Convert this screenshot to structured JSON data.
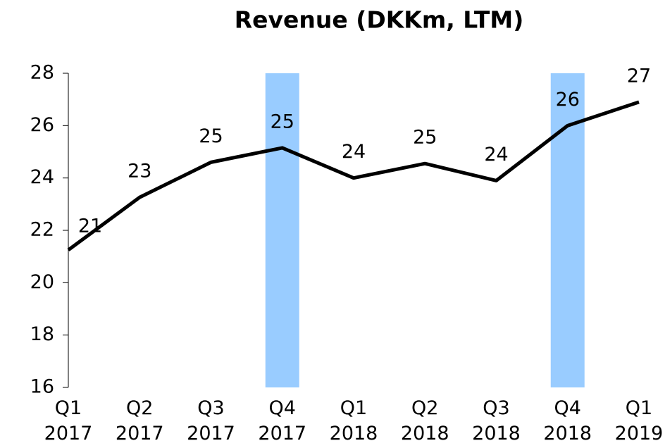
{
  "chart_data": {
    "type": "line",
    "title": "Revenue (DKKm, LTM)",
    "categories": [
      "Q1 2017",
      "Q2 2017",
      "Q3 2017",
      "Q4 2017",
      "Q1 2018",
      "Q2 2018",
      "Q3 2018",
      "Q4 2018",
      "Q1 2019"
    ],
    "values": [
      21.25,
      23.26,
      24.6,
      25.15,
      24.0,
      24.55,
      23.9,
      26.0,
      26.9
    ],
    "value_labels": [
      "21",
      "23",
      "25",
      "25",
      "24",
      "25",
      "24",
      "26",
      "27"
    ],
    "color": "#000000",
    "highlight": [
      3,
      7
    ],
    "highlight_color": "#99ccff",
    "ylim": [
      16,
      28
    ],
    "yticks": [
      16,
      18,
      20,
      22,
      24,
      26,
      28
    ]
  }
}
